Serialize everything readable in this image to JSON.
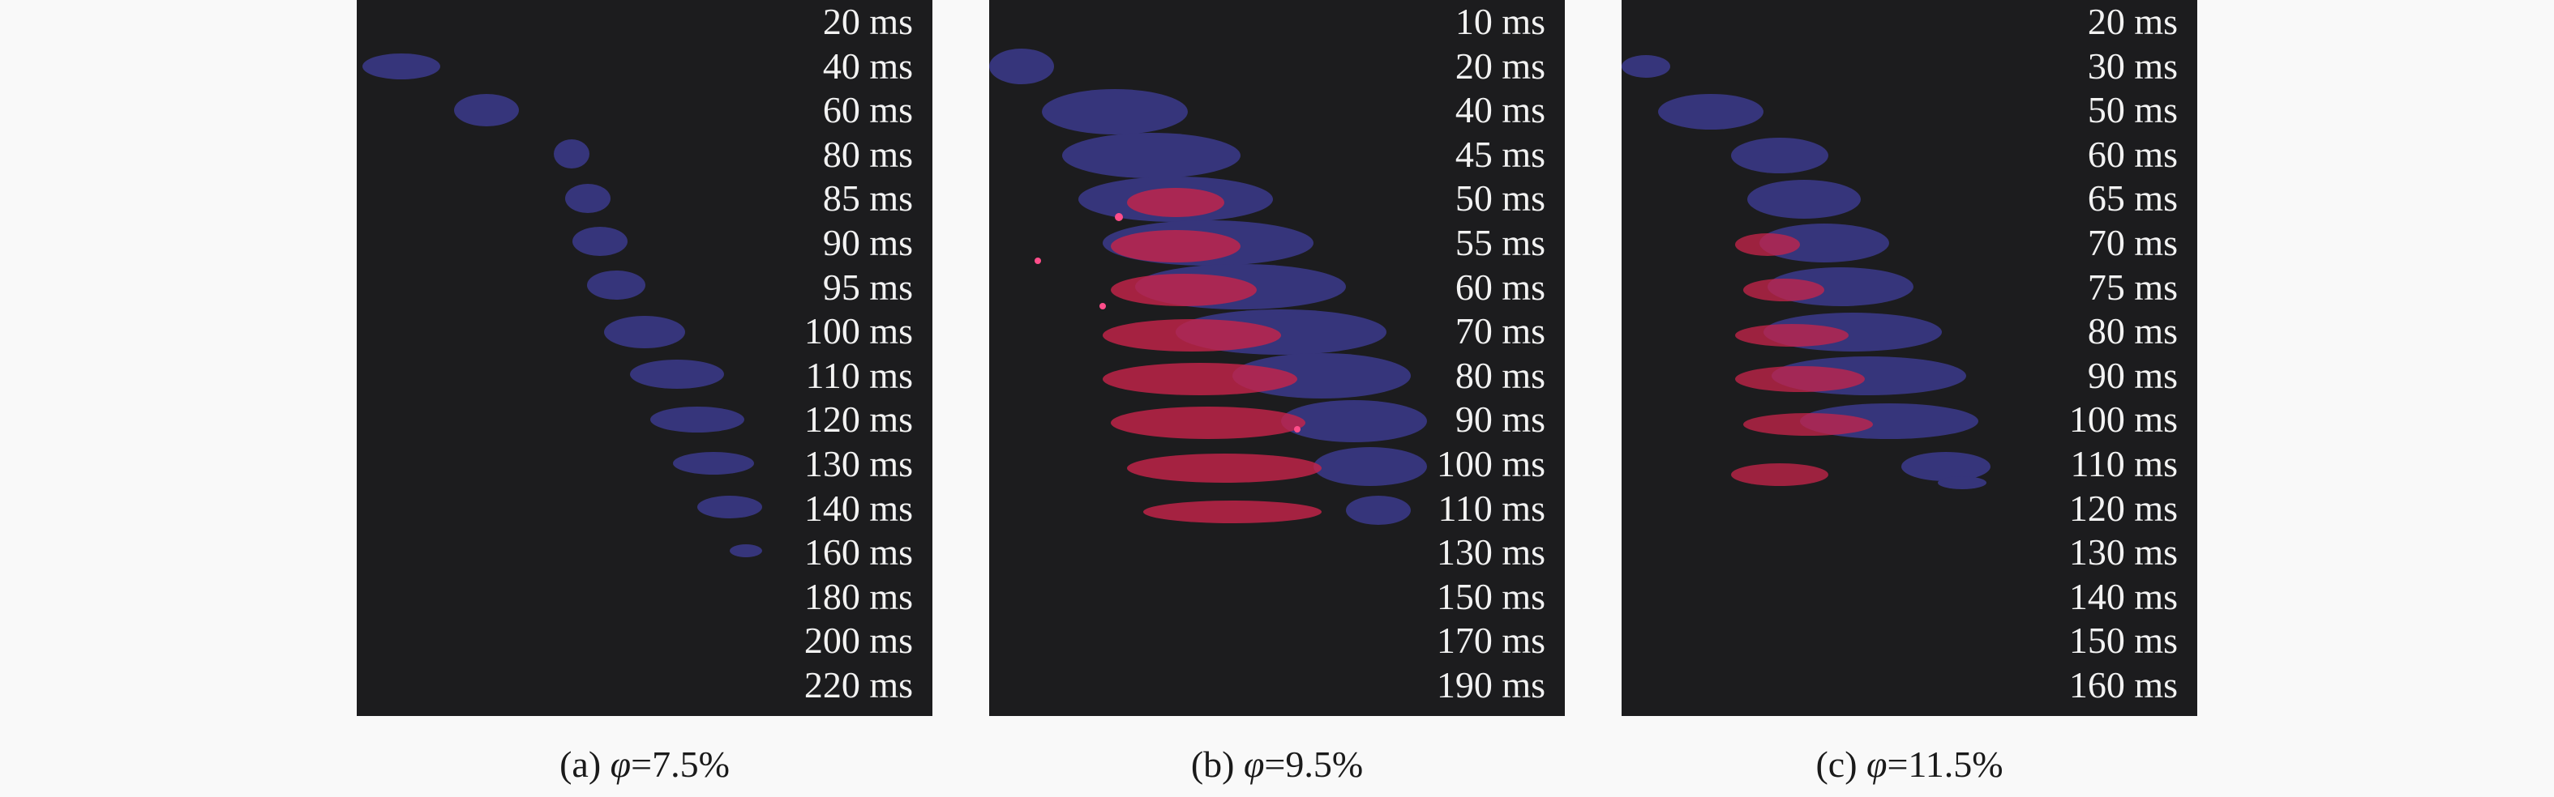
{
  "panels": [
    {
      "caption": {
        "prefix": "(a) ",
        "symbol": "φ",
        "suffix": "=7.5%"
      },
      "time_labels": [
        "20 ms",
        "40 ms",
        "60 ms",
        "80 ms",
        "85 ms",
        "90 ms",
        "95 ms",
        "100 ms",
        "110 ms",
        "120 ms",
        "130 ms",
        "140 ms",
        "160 ms",
        "180 ms",
        "200 ms",
        "220 ms"
      ]
    },
    {
      "caption": {
        "prefix": "(b) ",
        "symbol": "φ",
        "suffix": "=9.5%"
      },
      "time_labels": [
        "10 ms",
        "20 ms",
        "40 ms",
        "45 ms",
        "50 ms",
        "55 ms",
        "60 ms",
        "70 ms",
        "80 ms",
        "90 ms",
        "100 ms",
        "110 ms",
        "130 ms",
        "150 ms",
        "170 ms",
        "190 ms"
      ]
    },
    {
      "caption": {
        "prefix": "(c) ",
        "symbol": "φ",
        "suffix": "=11.5%"
      },
      "time_labels": [
        "20 ms",
        "30 ms",
        "50 ms",
        "60 ms",
        "65 ms",
        "70 ms",
        "75 ms",
        "80 ms",
        "90 ms",
        "100 ms",
        "110 ms",
        "120 ms",
        "130 ms",
        "140 ms",
        "150 ms",
        "160 ms"
      ]
    }
  ],
  "colors": {
    "panel_background": "#1c1c1e",
    "flame_blue": "#3b3a8c",
    "flame_red": "#c8244a",
    "label_text": "#f2f2f2",
    "caption_text": "#1a1a1a"
  }
}
